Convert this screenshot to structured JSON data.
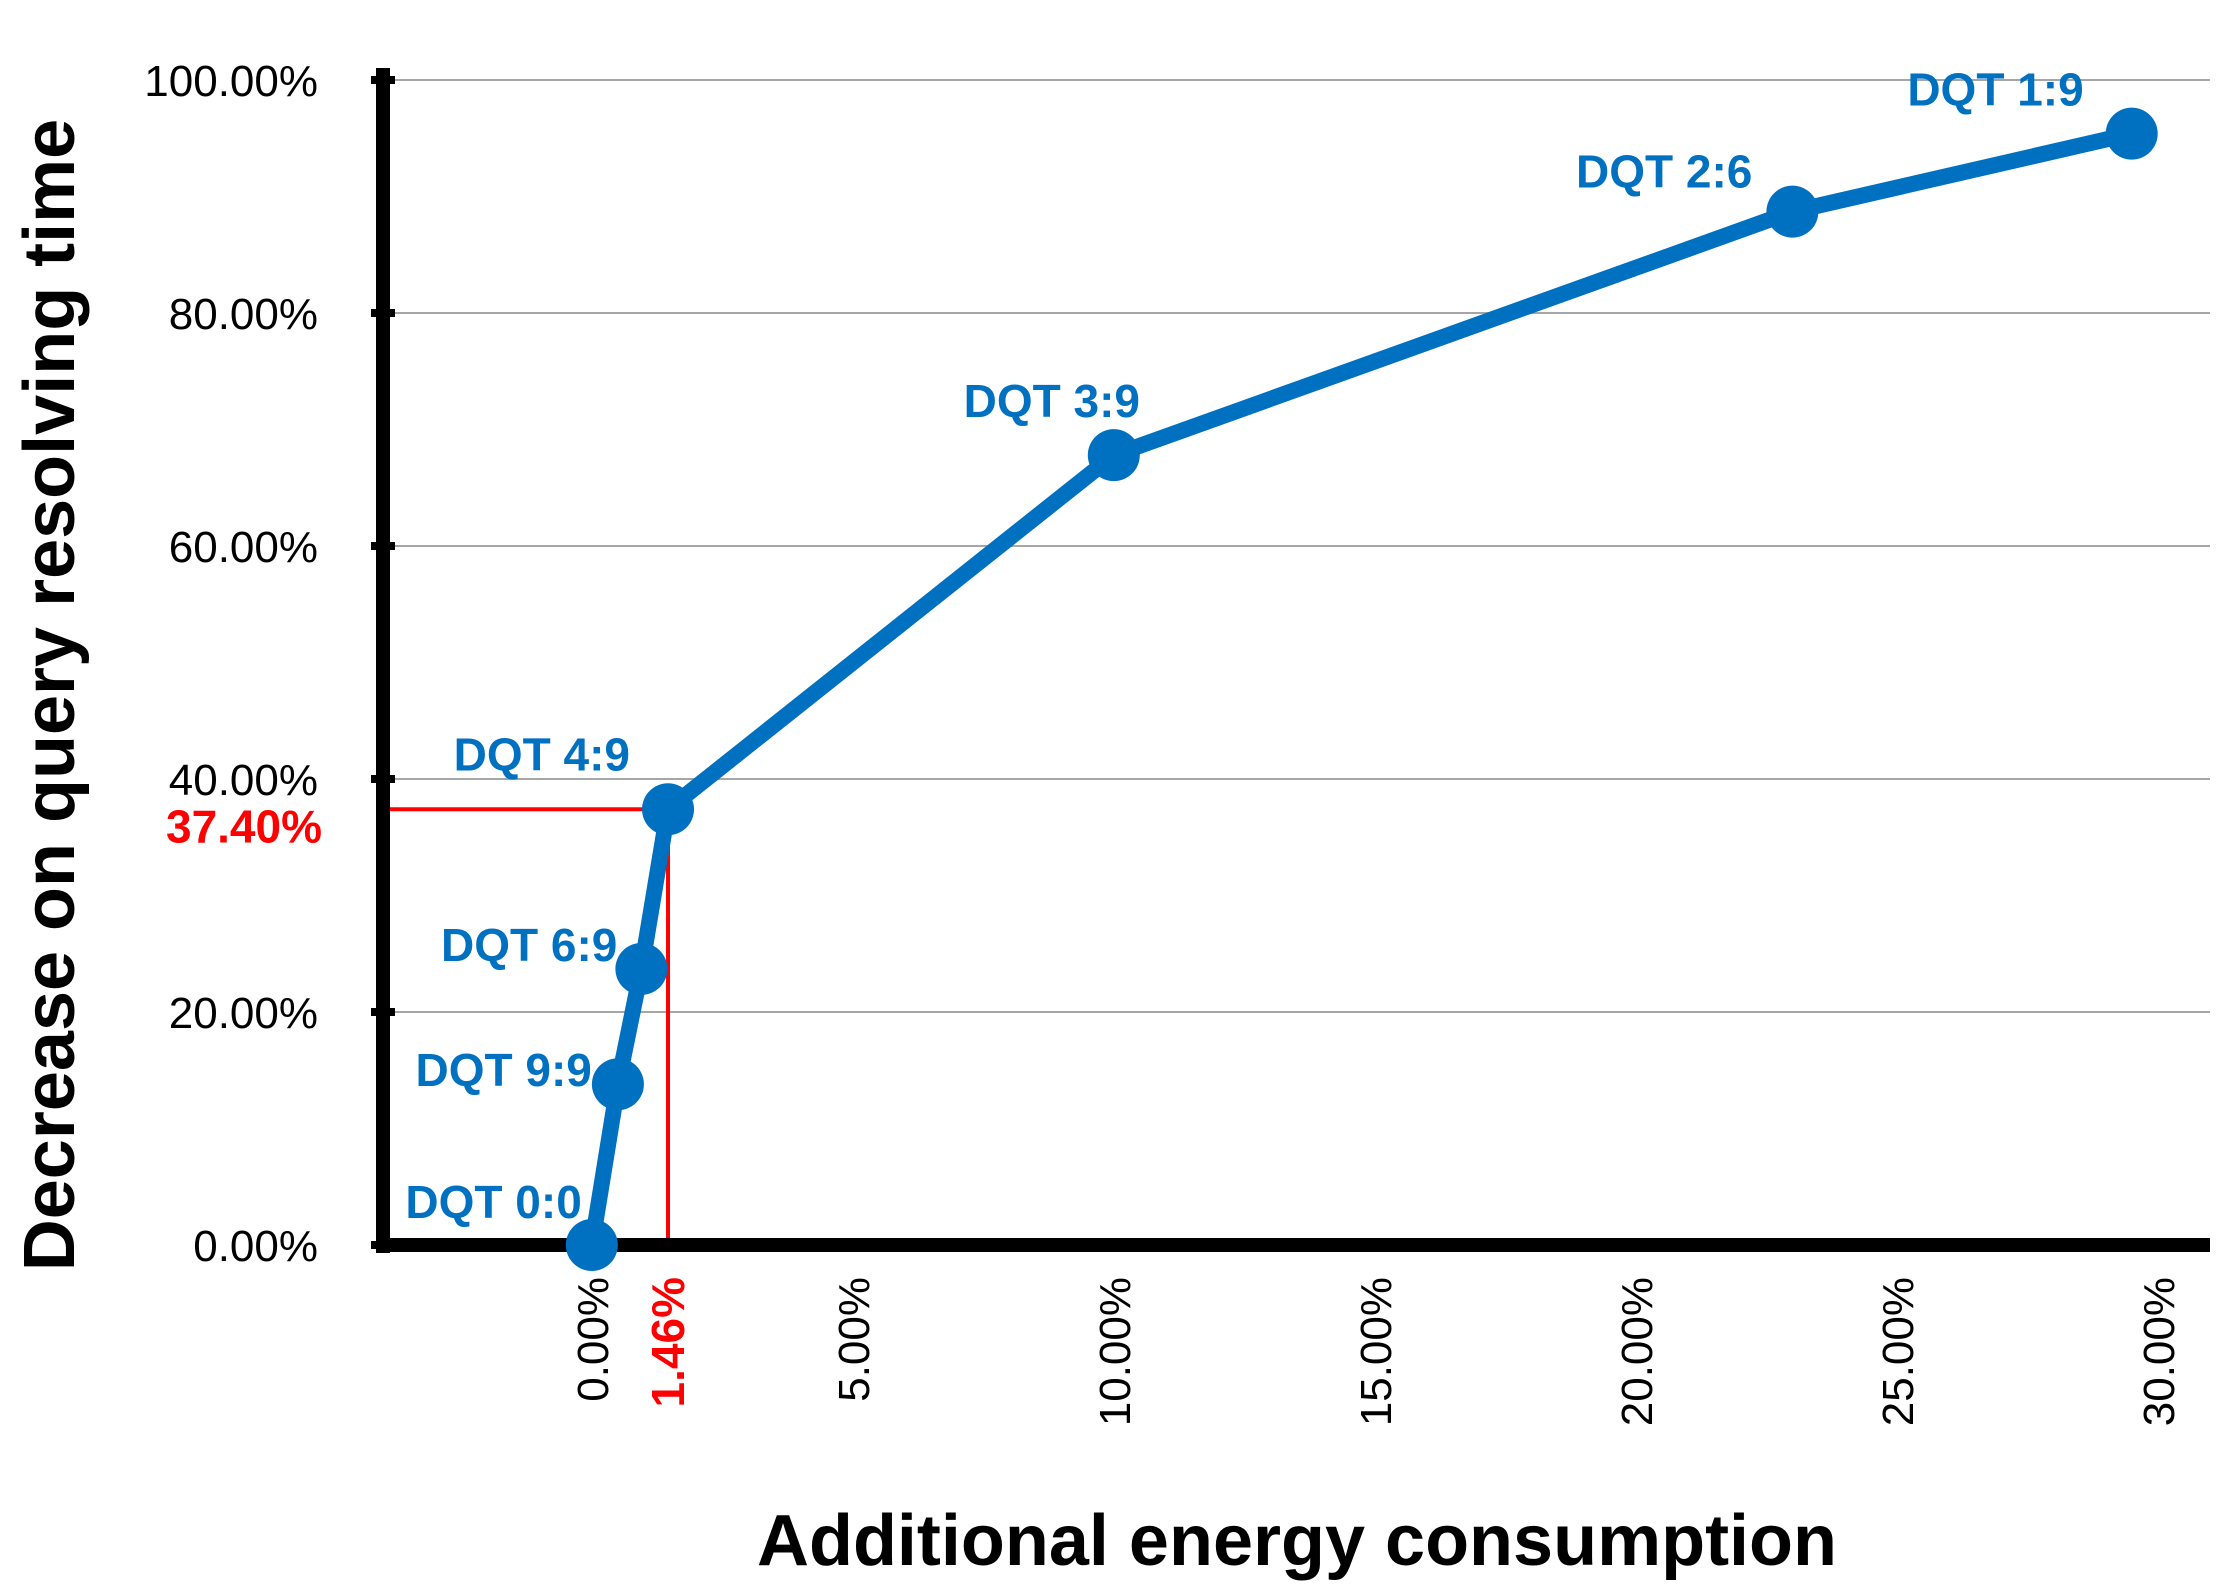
{
  "chart_data": {
    "type": "line",
    "xlabel": "Additional energy consumption",
    "ylabel": "Decrease on query resolving time",
    "xlim": [
      -4.0,
      31.0
    ],
    "ylim": [
      0,
      100
    ],
    "x_ticks": [
      0,
      5,
      10,
      15,
      20,
      25,
      30
    ],
    "x_tick_labels": [
      "0.00%",
      "5.00%",
      "10.00%",
      "15.00%",
      "20.00%",
      "25.00%",
      "30.00%"
    ],
    "y_ticks": [
      0,
      20,
      40,
      60,
      80,
      100
    ],
    "y_tick_labels": [
      "0.00%",
      "20.00%",
      "40.00%",
      "60.00%",
      "80.00%",
      "100.00%"
    ],
    "grid": true,
    "series": [
      {
        "name": "DQT",
        "points": [
          {
            "label": "DQT 0:0",
            "x": 0.0,
            "y": 0.0
          },
          {
            "label": "DQT 9:9",
            "x": 0.5,
            "y": 13.8
          },
          {
            "label": "DQT 6:9",
            "x": 0.95,
            "y": 23.7
          },
          {
            "label": "DQT 4:9",
            "x": 1.46,
            "y": 37.4
          },
          {
            "label": "DQT 3:9",
            "x": 10.0,
            "y": 67.8
          },
          {
            "label": "DQT 2:6",
            "x": 23.0,
            "y": 88.7
          },
          {
            "label": "DQT 1:9",
            "x": 29.5,
            "y": 95.4
          }
        ]
      }
    ],
    "highlight": {
      "x": 1.46,
      "y": 37.4,
      "x_label": "1.46%",
      "y_label": "37.40%"
    },
    "colors": {
      "series": "#0070C0",
      "highlight": "#FF0000",
      "axis": "#000000",
      "grid": "#A6A6A6"
    }
  }
}
